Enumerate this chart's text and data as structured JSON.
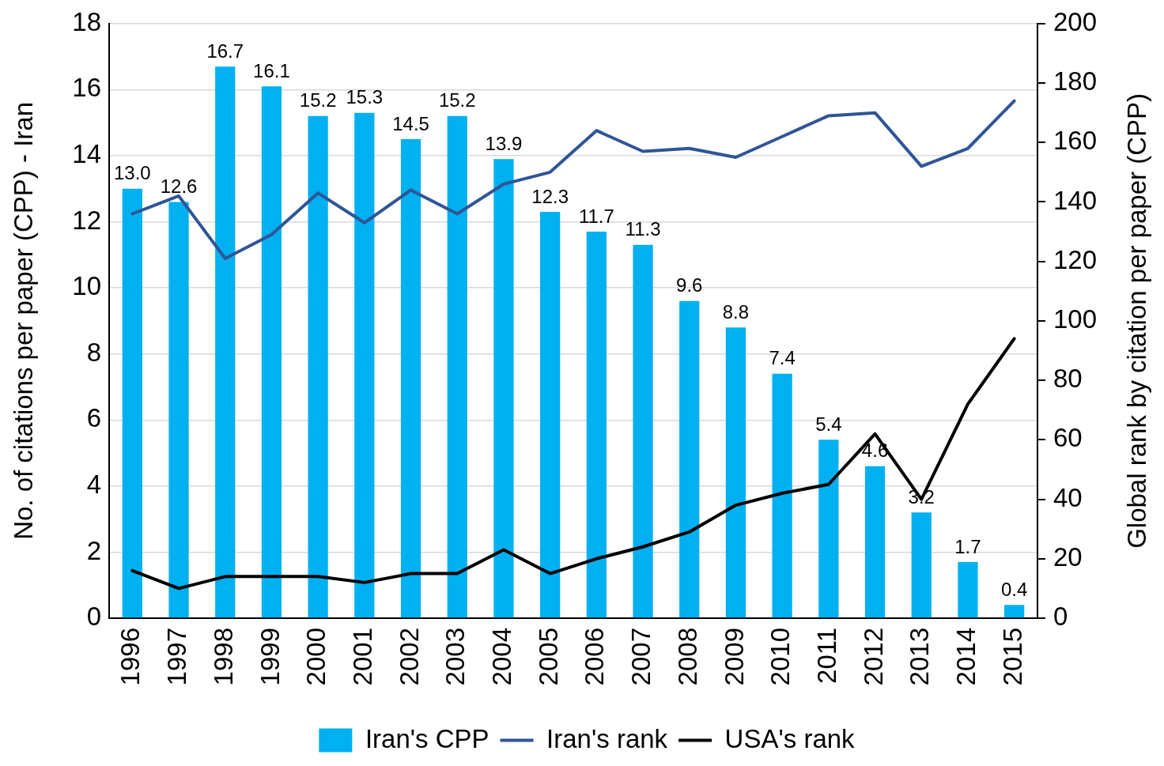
{
  "chart_data": {
    "type": "bar",
    "ylabel": "No. of citations per paper (CPP) - Iran",
    "y2label": "Global rank by citation per paper (CPP)",
    "categories": [
      "1996",
      "1997",
      "1998",
      "1999",
      "2000",
      "2001",
      "2002",
      "2003",
      "2004",
      "2005",
      "2006",
      "2007",
      "2008",
      "2009",
      "2010",
      "2011",
      "2012",
      "2013",
      "2014",
      "2015"
    ],
    "series": [
      {
        "name": "Iran's CPP",
        "type": "bar",
        "color": "#00b0f0",
        "values": [
          13.0,
          12.6,
          16.7,
          16.1,
          15.2,
          15.3,
          14.5,
          15.2,
          13.9,
          12.3,
          11.7,
          11.3,
          9.6,
          8.8,
          7.4,
          5.4,
          4.6,
          3.2,
          1.7,
          0.4
        ],
        "value_labels": [
          "13.0",
          "12.6",
          "16.7",
          "16.1",
          "15.2",
          "15.3",
          "14.5",
          "15.2",
          "13.9",
          "12.3",
          "11.7",
          "11.3",
          "9.6",
          "8.8",
          "7.4",
          "5.4",
          "4.6",
          "3.2",
          "1.7",
          "0.4"
        ]
      },
      {
        "name": "Iran's rank",
        "type": "line",
        "axis": "y2",
        "color": "#2f5597",
        "values": [
          136,
          142,
          121,
          129,
          143,
          133,
          144,
          136,
          146,
          150,
          164,
          157,
          158,
          155,
          162,
          169,
          170,
          152,
          158,
          174
        ]
      },
      {
        "name": "USA's rank",
        "type": "line",
        "axis": "y2",
        "color": "#000000",
        "values": [
          16,
          10,
          14,
          14,
          14,
          12,
          15,
          15,
          23,
          15,
          20,
          24,
          29,
          38,
          42,
          45,
          62,
          40,
          72,
          94
        ]
      }
    ],
    "ylim": [
      0,
      18
    ],
    "yticks": [
      0,
      2,
      4,
      6,
      8,
      10,
      12,
      14,
      16,
      18
    ],
    "y2lim": [
      0,
      200
    ],
    "y2ticks": [
      0,
      20,
      40,
      60,
      80,
      100,
      120,
      140,
      160,
      180,
      200
    ],
    "grid": "y",
    "legend": "bottom",
    "marker": "none"
  }
}
